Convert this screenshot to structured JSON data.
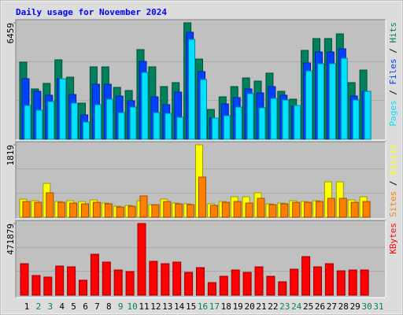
{
  "title": "Daily usage for November 2024",
  "chart_data": [
    {
      "type": "bar",
      "ylim": [
        0,
        6459
      ],
      "yticks": [
        6459
      ],
      "legend_separator": " / ",
      "series": [
        {
          "name": "Hits",
          "color": "#00805c",
          "values": [
            4277,
            2793,
            3099,
            4408,
            3448,
            2008,
            4015,
            4015,
            2880,
            2706,
            4975,
            4015,
            2924,
            3142,
            6459,
            4451,
            1658,
            2357,
            2924,
            3404,
            3230,
            3666,
            2662,
            2226,
            4932,
            5586,
            5586,
            5848,
            3142,
            3840,
            null
          ]
        },
        {
          "name": "Files",
          "color": "#0040ff",
          "values": [
            3360,
            2662,
            2444,
            3360,
            2488,
            1353,
            3055,
            3055,
            2400,
            2138,
            4320,
            2357,
            1920,
            2618,
            5935,
            3753,
            1178,
            1964,
            2313,
            2793,
            2575,
            2924,
            2444,
            1833,
            4233,
            4844,
            4844,
            5019,
            2400,
            2662,
            null
          ]
        },
        {
          "name": "Pages",
          "color": "#00e0ff",
          "values": [
            1877,
            1615,
            2095,
            3360,
            2008,
            960,
            1920,
            2226,
            1484,
            1789,
            3709,
            1484,
            1440,
            1222,
            5542,
            3317,
            1178,
            1309,
            1789,
            2531,
            1746,
            2269,
            2182,
            1877,
            3797,
            4190,
            4190,
            4495,
            2182,
            2662,
            null
          ]
        }
      ]
    },
    {
      "type": "bar",
      "ylim": [
        0,
        1819
      ],
      "yticks": [
        1819
      ],
      "series": [
        {
          "name": "Visits",
          "color": "#ffff00",
          "values": [
            455,
            415,
            850,
            395,
            415,
            395,
            435,
            356,
            277,
            297,
            415,
            316,
            455,
            356,
            336,
            1819,
            336,
            395,
            514,
            514,
            613,
            336,
            356,
            415,
            395,
            415,
            890,
            890,
            435,
            514,
            null
          ]
        },
        {
          "name": "Sites",
          "color": "#ff8000",
          "values": [
            395,
            375,
            613,
            375,
            356,
            336,
            375,
            336,
            257,
            277,
            534,
            316,
            395,
            336,
            316,
            1008,
            297,
            375,
            395,
            356,
            475,
            316,
            336,
            375,
            375,
            395,
            475,
            475,
            375,
            395,
            null
          ]
        }
      ]
    },
    {
      "type": "bar",
      "ylim": [
        0,
        471879
      ],
      "yticks": [
        471879
      ],
      "categories": [
        "1",
        "2",
        "3",
        "4",
        "5",
        "6",
        "7",
        "8",
        "9",
        "10",
        "11",
        "12",
        "13",
        "14",
        "15",
        "16",
        "17",
        "18",
        "19",
        "20",
        "21",
        "22",
        "23",
        "24",
        "25",
        "26",
        "27",
        "28",
        "29",
        "30",
        "31"
      ],
      "category_colors": [
        "#000000",
        "#00805c",
        "#00805c",
        "#000000",
        "#000000",
        "#000000",
        "#000000",
        "#000000",
        "#00805c",
        "#00805c",
        "#000000",
        "#000000",
        "#000000",
        "#000000",
        "#000000",
        "#00805c",
        "#00805c",
        "#000000",
        "#000000",
        "#000000",
        "#000000",
        "#000000",
        "#00805c",
        "#00805c",
        "#000000",
        "#000000",
        "#000000",
        "#000000",
        "#000000",
        "#00805c",
        "#00805c"
      ],
      "series": [
        {
          "name": "KBytes",
          "color": "#ff0000",
          "values": [
            207400,
            129625,
            119255,
            191845,
            186660,
            98515,
            269620,
            217770,
            165920,
            155550,
            471879,
            222955,
            207400,
            217770,
            150365,
            181475,
            82960,
            124440,
            165920,
            150365,
            186660,
            124440,
            88145,
            171105,
            254065,
            186660,
            207400,
            160735,
            165920,
            165920,
            null
          ]
        }
      ]
    }
  ]
}
